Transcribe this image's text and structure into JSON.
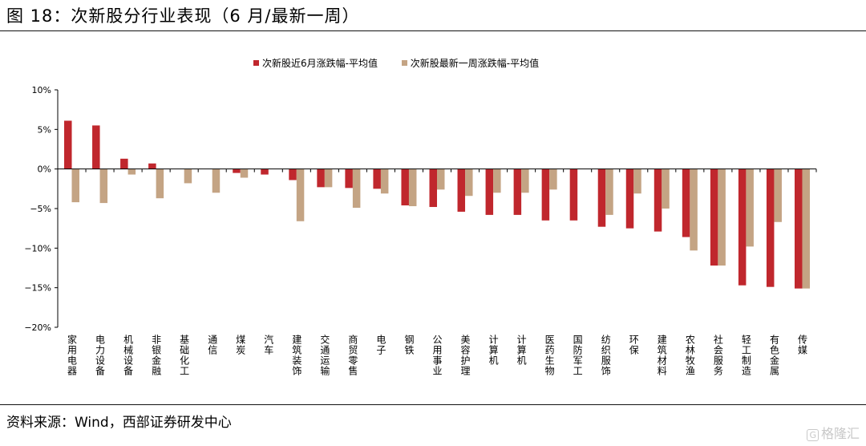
{
  "header": {
    "title": "图 18：次新股分行业表现（6 月/最新一周）"
  },
  "footer": {
    "source": "资料来源：Wind，西部证券研发中心",
    "watermark_icon_text": "G",
    "watermark_text": "格隆汇"
  },
  "colors": {
    "series_red": "#C0272D",
    "series_tan": "#C4A484",
    "axis": "#000000"
  },
  "chart_data": {
    "type": "bar",
    "title": "",
    "xlabel": "",
    "ylabel": "",
    "ylim": [
      -20,
      10
    ],
    "yticks": [
      10,
      5,
      0,
      -5,
      -10,
      -15,
      -20
    ],
    "ytick_labels": [
      "10%",
      "5%",
      "0%",
      "−5%",
      "−10%",
      "−15%",
      "−20%"
    ],
    "legend_position": "top-center",
    "grid": false,
    "categories": [
      "家用电器",
      "电力设备",
      "机械设备",
      "非银金融",
      "基础化工",
      "通信",
      "煤炭",
      "汽车",
      "建筑装饰",
      "交通运输",
      "商贸零售",
      "电子",
      "钢铁",
      "公用事业",
      "美容护理",
      "计算机",
      "计算机",
      "医药生物",
      "国防军工",
      "纺织服饰",
      "环保",
      "建筑材料",
      "农林牧渔",
      "社会服务",
      "轻工制造",
      "有色金属",
      "传媒"
    ],
    "series": [
      {
        "name": "次新股近6月涨跌幅-平均值",
        "color": "#C0272D",
        "values": [
          6.1,
          5.5,
          1.3,
          0.7,
          0.0,
          0.0,
          -0.5,
          -0.7,
          -1.4,
          -2.3,
          -2.4,
          -2.5,
          -4.6,
          -4.8,
          -5.4,
          -5.8,
          -5.8,
          -6.5,
          -6.5,
          -7.3,
          -7.5,
          -7.9,
          -8.6,
          -12.2,
          -14.7,
          -14.9,
          -15.1
        ]
      },
      {
        "name": "次新股最新一周涨跌幅-平均值",
        "color": "#C4A484",
        "values": [
          -4.2,
          -4.3,
          -0.7,
          -3.7,
          -1.8,
          -3.0,
          -1.1,
          0.0,
          -6.6,
          -2.3,
          -4.9,
          -3.1,
          -4.7,
          -2.6,
          -3.4,
          -3.0,
          -3.0,
          -2.6,
          0.0,
          -5.8,
          -3.1,
          -5.0,
          -10.3,
          -12.2,
          -9.8,
          -6.7,
          -15.1
        ]
      }
    ]
  }
}
